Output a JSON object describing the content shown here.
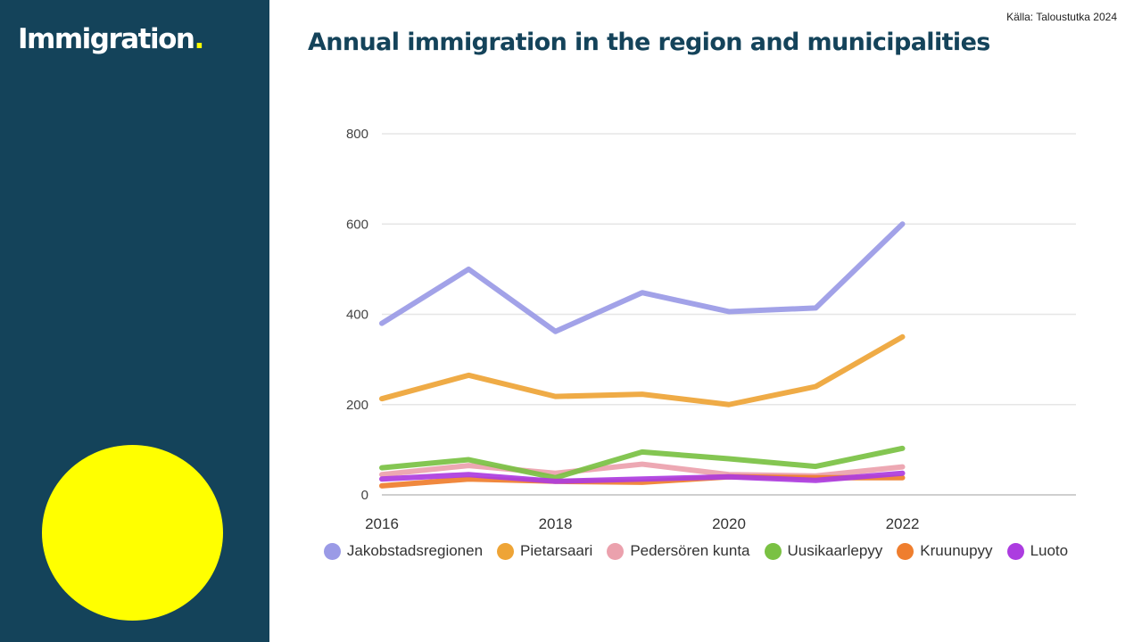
{
  "brand": {
    "name": "Immigration",
    "dot": "."
  },
  "source": "Källa: Taloustutka 2024",
  "title": "Annual immigration in the region and municipalities",
  "colors": {
    "sidebar": "#14435a",
    "accent": "#ffff00",
    "title": "#14435a"
  },
  "chart_data": {
    "type": "line",
    "title": "Annual immigration in the region and municipalities",
    "xlabel": "",
    "ylabel": "",
    "x": [
      2016,
      2017,
      2018,
      2019,
      2020,
      2021,
      2022
    ],
    "xticks": [
      "2016",
      "2018",
      "2020",
      "2022"
    ],
    "xlim": [
      2016,
      2024
    ],
    "ylim": [
      0,
      800
    ],
    "yticks": [
      "0",
      "200",
      "400",
      "600",
      "800"
    ],
    "grid": true,
    "legend": "bottom",
    "series": [
      {
        "name": "Jakobstadsregionen",
        "color": "#9a9ae6",
        "values": [
          380,
          500,
          362,
          448,
          406,
          414,
          600
        ]
      },
      {
        "name": "Pietarsaari",
        "color": "#eea436",
        "values": [
          213,
          265,
          218,
          223,
          200,
          240,
          350
        ]
      },
      {
        "name": "Pedersören kunta",
        "color": "#eba1ad",
        "values": [
          45,
          65,
          48,
          68,
          45,
          42,
          62
        ]
      },
      {
        "name": "Uusikaarlepyy",
        "color": "#7ac143",
        "values": [
          60,
          78,
          38,
          95,
          80,
          63,
          103
        ]
      },
      {
        "name": "Kruunupyy",
        "color": "#ef7e2e",
        "values": [
          20,
          35,
          30,
          28,
          40,
          38,
          38
        ]
      },
      {
        "name": "Luoto",
        "color": "#ac3ce0",
        "values": [
          35,
          45,
          30,
          35,
          40,
          32,
          48
        ]
      }
    ]
  }
}
